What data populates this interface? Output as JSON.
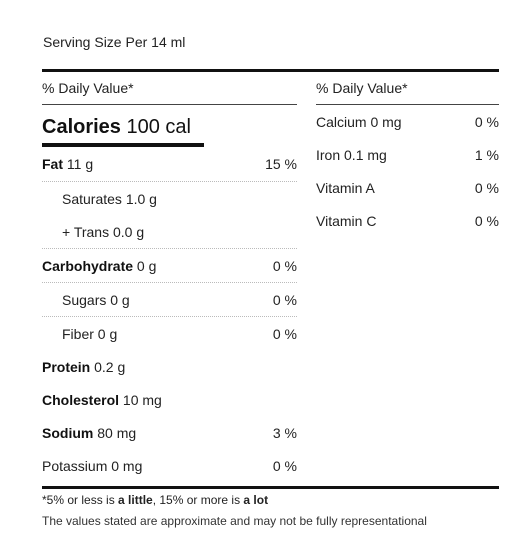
{
  "serving_size": "Serving Size Per 14 ml",
  "daily_value_header": "% Daily Value*",
  "calories": {
    "label": "Calories",
    "value": "100 cal"
  },
  "left_rows": [
    {
      "name": "Fat",
      "amount": "11 g",
      "pct": "15 %"
    },
    {
      "name": "Saturates 1.0 g",
      "amount": "",
      "pct": ""
    },
    {
      "name": "+ Trans 0.0 g",
      "amount": "",
      "pct": ""
    },
    {
      "name": "Carbohydrate",
      "amount": "0 g",
      "pct": "0 %"
    },
    {
      "name": "Sugars 0 g",
      "amount": "",
      "pct": "0 %"
    },
    {
      "name": "Fiber 0 g",
      "amount": "",
      "pct": "0 %"
    },
    {
      "name": "Protein",
      "amount": "0.2 g",
      "pct": ""
    },
    {
      "name": "Cholesterol",
      "amount": "10 mg",
      "pct": ""
    },
    {
      "name": "Sodium",
      "amount": "80 mg",
      "pct": "3 %"
    },
    {
      "name": "Potassium 0 mg",
      "amount": "",
      "pct": "0 %"
    }
  ],
  "right_rows": [
    {
      "name": "Calcium 0 mg",
      "pct": "0 %"
    },
    {
      "name": "Iron 0.1 mg",
      "pct": "1 %"
    },
    {
      "name": "Vitamin A",
      "pct": "0 %"
    },
    {
      "name": "Vitamin C",
      "pct": "0 %"
    }
  ],
  "footnote": {
    "part1": "*5% or less is ",
    "bold1": "a little",
    "part2": ", 15% or more is ",
    "bold2": "a lot"
  },
  "disclaimer": "The values stated are approximate and may not be fully representational"
}
